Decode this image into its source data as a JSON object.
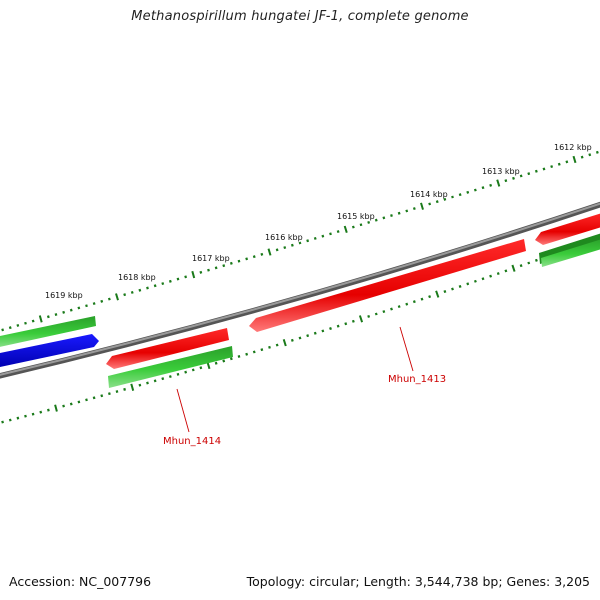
{
  "title": "Methanospirillum hungatei JF-1, complete genome",
  "footer": {
    "accession": "Accession: NC_007796",
    "summary": "Topology: circular; Length: 3,544,738 bp; Genes: 3,205"
  },
  "ruler": {
    "labels": [
      "1612 kbp",
      "1613 kbp",
      "1614 kbp",
      "1615 kbp",
      "1616 kbp",
      "1617 kbp",
      "1618 kbp",
      "1619 kbp"
    ]
  },
  "genes": [
    {
      "name": "Mhun_1413",
      "color": "#ff0000"
    },
    {
      "name": "Mhun_1414",
      "color": "#ff0000"
    }
  ],
  "colors": {
    "backbone": "#777777",
    "cds_forward": "#ff0000",
    "cds_green": "#33cc33",
    "cds_blue": "#0000ee",
    "ticks": "#1a7a1a",
    "label": "#cc0000"
  }
}
